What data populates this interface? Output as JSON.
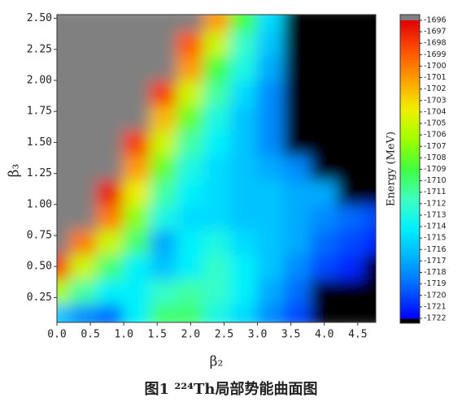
{
  "chart_data": {
    "type": "heatmap",
    "xlabel": "β₂",
    "ylabel": "β₃",
    "colorbar_label": "Energy (MeV)",
    "caption": "图1 ²²⁴Th局部势能曲面图",
    "x": [
      0,
      0.4,
      0.8,
      1.2,
      1.6,
      2.0,
      2.4,
      2.8,
      3.2,
      3.6,
      4.0,
      4.4,
      4.8
    ],
    "y": [
      0.1,
      0.3,
      0.5,
      0.7,
      0.9,
      1.1,
      1.3,
      1.5,
      1.7,
      1.9,
      2.1,
      2.3,
      2.5
    ],
    "z": [
      [
        -1716,
        -1718,
        -1719,
        -1714,
        -1710,
        -1710,
        -1713,
        -1715,
        -1718,
        -1720,
        -1723,
        -1723,
        -1723
      ],
      [
        -1706,
        -1711,
        -1714,
        -1714,
        -1712,
        -1711,
        -1712,
        -1714,
        -1717,
        -1719,
        -1723,
        -1723,
        -1723
      ],
      [
        -1698,
        -1705,
        -1710,
        -1714,
        -1716,
        -1714,
        -1712,
        -1714,
        -1716,
        -1718,
        -1720,
        -1721,
        -1723
      ],
      [
        -1695,
        -1700,
        -1705,
        -1710,
        -1717,
        -1714,
        -1713,
        -1715,
        -1716,
        -1717,
        -1719,
        -1720,
        -1721
      ],
      [
        -1695,
        -1695,
        -1700,
        -1707,
        -1713,
        -1715,
        -1715,
        -1716,
        -1716,
        -1717,
        -1718,
        -1719,
        -1720
      ],
      [
        -1695,
        -1695,
        -1697,
        -1704,
        -1711,
        -1714,
        -1715,
        -1716,
        -1716,
        -1717,
        -1717,
        -1723,
        -1723
      ],
      [
        -1695,
        -1695,
        -1695,
        -1701,
        -1708,
        -1713,
        -1715,
        -1716,
        -1717,
        -1718,
        -1723,
        -1723,
        -1723
      ],
      [
        -1695,
        -1695,
        -1695,
        -1698,
        -1705,
        -1711,
        -1714,
        -1716,
        -1718,
        -1723,
        -1723,
        -1723,
        -1723
      ],
      [
        -1695,
        -1695,
        -1695,
        -1695,
        -1702,
        -1708,
        -1713,
        -1716,
        -1718,
        -1723,
        -1723,
        -1723,
        -1723
      ],
      [
        -1695,
        -1695,
        -1695,
        -1695,
        -1698,
        -1705,
        -1711,
        -1715,
        -1718,
        -1723,
        -1723,
        -1723,
        -1723
      ],
      [
        -1695,
        -1695,
        -1695,
        -1695,
        -1695,
        -1701,
        -1709,
        -1713,
        -1717,
        -1723,
        -1723,
        -1723,
        -1723
      ],
      [
        -1695,
        -1695,
        -1695,
        -1695,
        -1695,
        -1699,
        -1705,
        -1712,
        -1716,
        -1723,
        -1723,
        -1723,
        -1723
      ],
      [
        -1695,
        -1695,
        -1695,
        -1695,
        -1695,
        -1695,
        -1701,
        -1709,
        -1715,
        -1723,
        -1723,
        -1723,
        -1723
      ]
    ],
    "xlim": [
      0,
      4.77
    ],
    "ylim": [
      0.05,
      2.53
    ],
    "xticks": [
      {
        "value": 0,
        "label": "0.0"
      },
      0.5,
      {
        "value": 1,
        "label": "1.0"
      },
      1.5,
      {
        "value": 2,
        "label": "2.0"
      },
      2.5,
      {
        "value": 3,
        "label": "3.0"
      },
      3.5,
      {
        "value": 4,
        "label": "4.0"
      },
      4.5
    ],
    "yticks": [
      0.25,
      {
        "value": 0.5,
        "label": "0.50"
      },
      0.75,
      {
        "value": 1,
        "label": "1.00"
      },
      1.25,
      {
        "value": 1.5,
        "label": "1.50"
      },
      1.75,
      {
        "value": 2,
        "label": "2.00"
      },
      2.25,
      {
        "value": 2.5,
        "label": "2.50"
      }
    ],
    "zlim": [
      -1722,
      -1696
    ],
    "zticks": [
      -1696,
      -1697,
      -1698,
      -1699,
      -1700,
      -1701,
      -1702,
      -1703,
      -1704,
      -1705,
      -1706,
      -1707,
      -1708,
      -1709,
      -1710,
      -1711,
      -1712,
      -1713,
      -1714,
      -1715,
      -1716,
      -1717,
      -1718,
      -1719,
      -1720,
      -1721,
      -1722
    ],
    "colormap": [
      "#0000ff",
      "#0060ff",
      "#00b0ff",
      "#00f0ff",
      "#40ffc0",
      "#40ff40",
      "#a0ff00",
      "#f0f000",
      "#ffa000",
      "#ff5000",
      "#e00000"
    ],
    "over_color": "#808080",
    "under_color": "#000000"
  }
}
